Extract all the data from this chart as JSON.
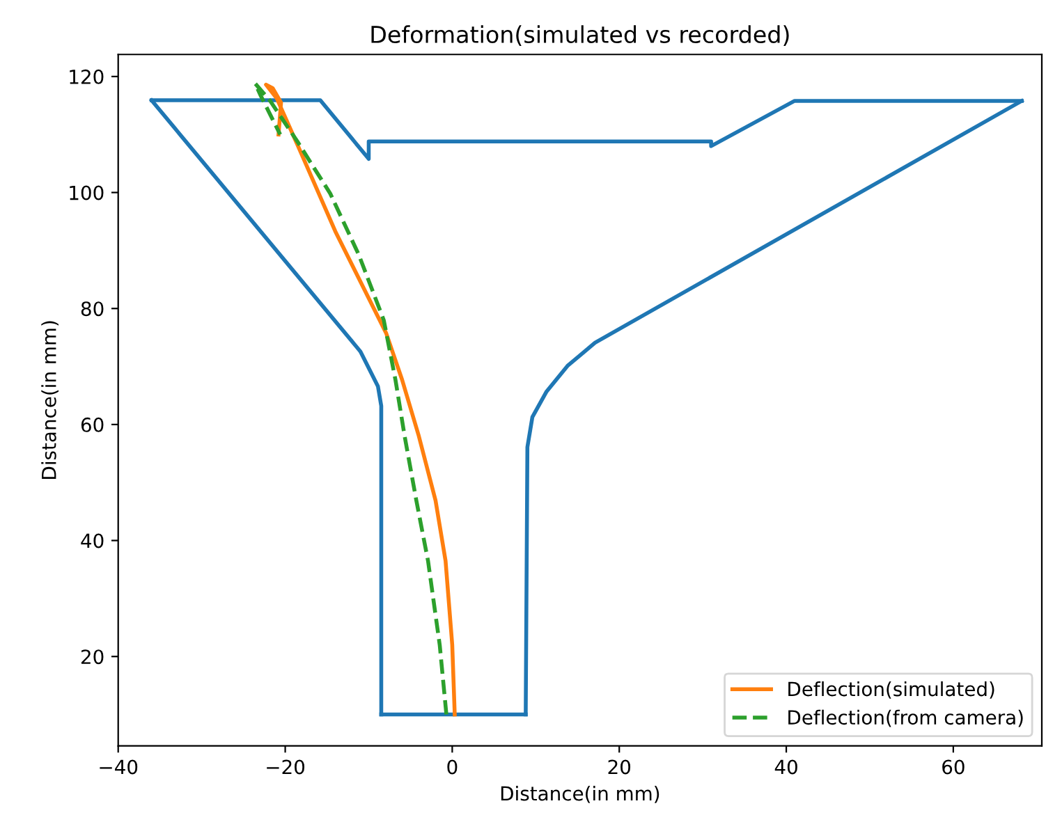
{
  "chart_data": {
    "type": "line",
    "title": "Deformation(simulated vs recorded)",
    "xlabel": "Distance(in mm)",
    "ylabel": "Distance(in mm)",
    "xlim": [
      -40,
      70.6
    ],
    "ylim": [
      4.6,
      123.8
    ],
    "xticks": [
      {
        "value": -40,
        "label": "−40"
      },
      {
        "value": -20,
        "label": "−20"
      },
      0,
      20,
      40,
      60
    ],
    "yticks": [
      20,
      40,
      60,
      80,
      100,
      120
    ],
    "grid": false,
    "legend": "bottom right",
    "series": [
      {
        "color": "#1f77b4",
        "line_style": "solid",
        "x": [
          -8.5,
          -8.5,
          -8.9,
          -11,
          -36
        ],
        "values": [
          10,
          63.2,
          66.6,
          72.6,
          115.9
        ]
      },
      {
        "color": "#1f77b4",
        "line_style": "solid",
        "x": [
          -36,
          -15.8,
          -10,
          -10,
          31,
          31,
          41,
          68.2
        ],
        "values": [
          115.9,
          115.9,
          105.8,
          108.8,
          108.8,
          108,
          115.8,
          115.8
        ]
      },
      {
        "color": "#1f77b4",
        "line_style": "solid",
        "x": [
          68.2,
          17.1,
          13.8,
          11.3,
          9.6,
          9,
          8.8
        ],
        "values": [
          115.8,
          74.1,
          70.1,
          65.7,
          61.3,
          56.1,
          10
        ]
      },
      {
        "color": "#1f77b4",
        "line_style": "solid",
        "x": [
          8.8,
          -8.5
        ],
        "values": [
          10,
          10
        ]
      },
      {
        "name": "Deflection(simulated)",
        "color": "#ff7f0e",
        "line_style": "solid",
        "x": [
          0.3,
          0,
          -0.8,
          -2,
          -4,
          -6,
          -7.9,
          -14,
          -18.4,
          -21,
          -22.3,
          -21.5,
          -20.5,
          -20.8
        ],
        "values": [
          10,
          22,
          36.5,
          46.9,
          58,
          67.7,
          75.7,
          93.3,
          107.8,
          116.2,
          118.6,
          118,
          115.5,
          110
        ]
      },
      {
        "name": "Deflection(from camera)",
        "color": "#2ca02c",
        "line_style": "dashed",
        "x": [
          -0.7,
          -1.5,
          -2.9,
          -4.3,
          -5.7,
          -6.8,
          -8.2,
          -11.2,
          -14.6,
          -18.5,
          -21.8,
          -23.6,
          -22.9,
          -20.6
        ],
        "values": [
          10,
          22,
          36.5,
          46.9,
          58,
          67.7,
          78,
          89.3,
          99.8,
          108.7,
          115.8,
          118.8,
          116.6,
          110
        ]
      }
    ]
  }
}
